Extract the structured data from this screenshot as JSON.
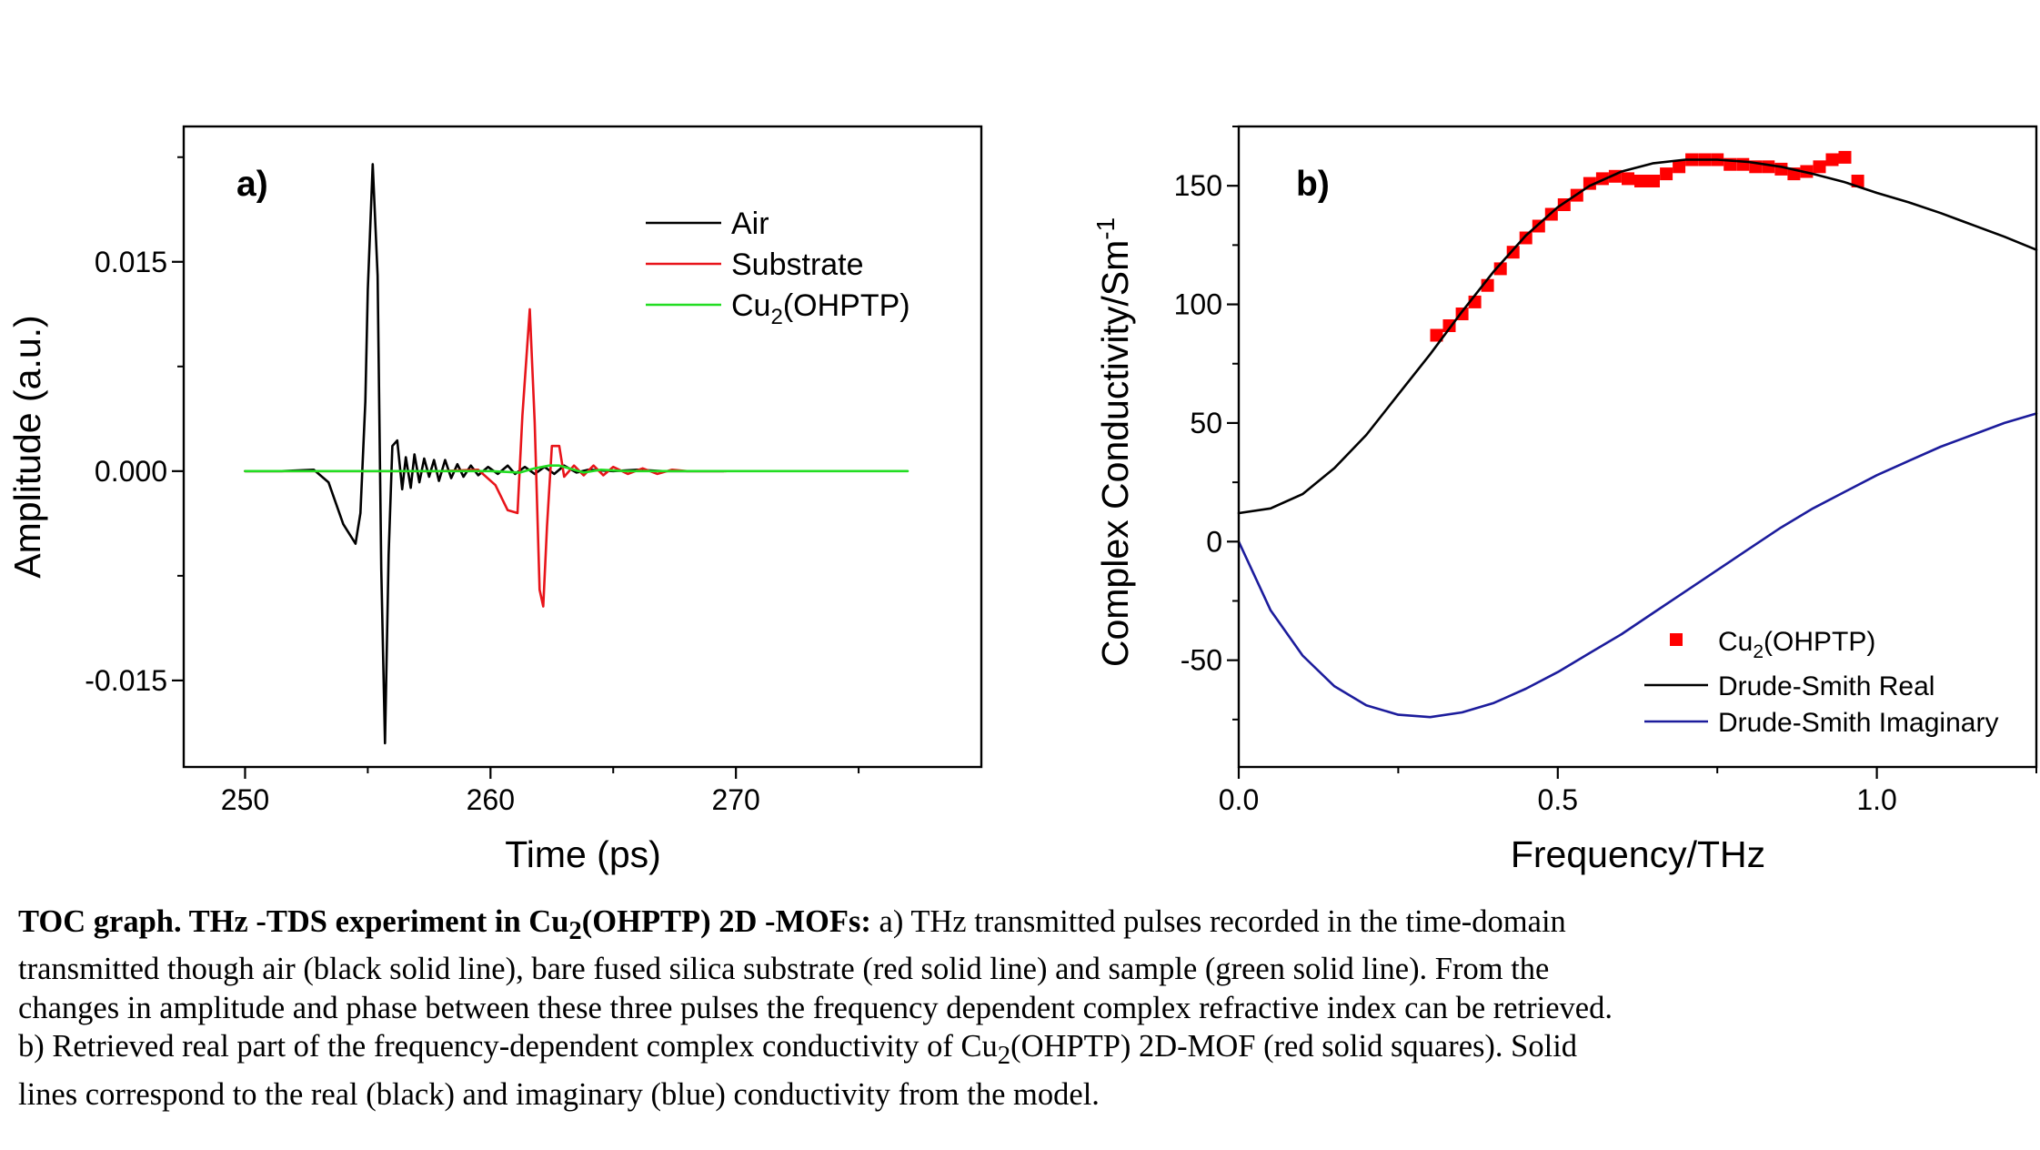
{
  "chart_data": [
    {
      "type": "line",
      "panel_label": "a)",
      "xlabel": "Time (ps)",
      "ylabel": "Amplitude (a.u.)",
      "xlim": [
        247.5,
        280
      ],
      "ylim": [
        -0.0212,
        0.0247
      ],
      "x_ticks": [
        250,
        260,
        270
      ],
      "x_tick_labels": [
        "250",
        "260",
        "270"
      ],
      "y_ticks": [
        -0.015,
        0.0,
        0.015
      ],
      "y_tick_labels": [
        "-0.015",
        "0.000",
        "0.015"
      ],
      "grid": false,
      "legend_position": "top-right",
      "series": [
        {
          "name": "Air",
          "color": "#000000",
          "x": [
            250.0,
            251.5,
            252.8,
            253.4,
            254.0,
            254.5,
            254.7,
            254.9,
            255.0,
            255.2,
            255.4,
            255.55,
            255.7,
            255.85,
            256.0,
            256.2,
            256.4,
            256.55,
            256.75,
            256.9,
            257.1,
            257.3,
            257.5,
            257.7,
            257.9,
            258.15,
            258.4,
            258.65,
            258.9,
            259.2,
            259.5,
            259.9,
            260.3,
            260.7,
            261.0,
            261.4,
            261.8,
            262.2,
            262.6,
            263.0,
            263.5,
            264.0,
            265.0,
            266.0,
            267.0,
            268.0,
            269.5
          ],
          "y": [
            0.0,
            0.0,
            0.0001,
            -0.0008,
            -0.0038,
            -0.0052,
            -0.003,
            0.005,
            0.013,
            0.022,
            0.014,
            -0.007,
            -0.0195,
            -0.006,
            0.0018,
            0.0022,
            -0.0013,
            0.001,
            -0.0012,
            0.0012,
            -0.0008,
            0.0009,
            -0.0004,
            0.0008,
            -0.0007,
            0.0008,
            -0.0005,
            0.0005,
            -0.0004,
            0.0004,
            -0.0003,
            0.0003,
            -0.0002,
            0.0004,
            -0.0002,
            0.0003,
            -0.0002,
            0.0003,
            -0.0002,
            0.0004,
            -0.0001,
            0.0001,
            0.0,
            0.0001,
            0.0,
            0.0,
            0.0
          ]
        },
        {
          "name": "Substrate",
          "color": "#e8141a",
          "x": [
            250.0,
            255.0,
            258.0,
            259.5,
            260.2,
            260.7,
            261.1,
            261.3,
            261.6,
            261.8,
            262.0,
            262.15,
            262.3,
            262.5,
            262.8,
            263.0,
            263.4,
            263.8,
            264.2,
            264.6,
            265.0,
            265.6,
            266.2,
            266.8,
            267.4,
            268.0,
            269.6
          ],
          "y": [
            0.0,
            0.0,
            0.0,
            0.0001,
            -0.001,
            -0.0028,
            -0.003,
            0.004,
            0.0116,
            0.0035,
            -0.0085,
            -0.0097,
            -0.004,
            0.0018,
            0.0018,
            -0.0004,
            0.0004,
            -0.0003,
            0.0004,
            -0.0003,
            0.0003,
            -0.0002,
            0.0002,
            -0.0002,
            0.0001,
            0.0,
            0.0
          ]
        },
        {
          "name": "Cu2(OHPTP)",
          "color": "#22dd22",
          "x": [
            250.0,
            260.0,
            261.2,
            261.8,
            262.4,
            262.8,
            263.2,
            263.8,
            264.5,
            265.5,
            277.0
          ],
          "y": [
            0.0,
            0.0,
            -0.0001,
            0.0002,
            0.0004,
            0.0004,
            0.0002,
            -0.0001,
            0.0001,
            0.0,
            0.0
          ]
        }
      ]
    },
    {
      "type": "scatter",
      "panel_label": "b)",
      "xlabel": "Frequency/THz",
      "ylabel": "Complex Conductivity/Sm",
      "ylabel_sup": "-1",
      "xlim": [
        0.0,
        1.25
      ],
      "ylim": [
        -95,
        175
      ],
      "x_ticks": [
        0.0,
        0.5,
        1.0
      ],
      "x_tick_labels": [
        "0.0",
        "0.5",
        "1.0"
      ],
      "y_ticks": [
        -50,
        0,
        50,
        100,
        150
      ],
      "y_tick_labels": [
        "-50",
        "0",
        "50",
        "100",
        "150"
      ],
      "grid": false,
      "legend_position": "bottom-right",
      "series": [
        {
          "name": "Cu2(OHPTP)",
          "marker": "square",
          "color": "#ff0000",
          "x": [
            0.31,
            0.33,
            0.35,
            0.37,
            0.39,
            0.41,
            0.43,
            0.45,
            0.47,
            0.49,
            0.51,
            0.53,
            0.55,
            0.57,
            0.59,
            0.61,
            0.63,
            0.65,
            0.67,
            0.69,
            0.71,
            0.73,
            0.75,
            0.77,
            0.79,
            0.81,
            0.83,
            0.85,
            0.87,
            0.89,
            0.91,
            0.93,
            0.95,
            0.97
          ],
          "y": [
            87,
            91,
            96,
            101,
            108,
            115,
            122,
            128,
            133,
            138,
            142,
            146,
            151,
            153,
            154,
            153,
            152,
            152,
            155,
            158,
            161,
            161,
            161,
            159,
            159,
            158,
            158,
            157,
            155,
            156,
            158,
            161,
            162,
            152
          ]
        },
        {
          "name": "Drude-Smith Real",
          "color": "#000000",
          "x": [
            0.0,
            0.05,
            0.1,
            0.15,
            0.2,
            0.25,
            0.3,
            0.35,
            0.4,
            0.45,
            0.5,
            0.55,
            0.6,
            0.65,
            0.7,
            0.75,
            0.8,
            0.85,
            0.9,
            0.95,
            1.0,
            1.05,
            1.1,
            1.15,
            1.2,
            1.25
          ],
          "y": [
            12,
            14,
            20,
            31,
            45,
            62,
            79,
            97,
            114,
            129,
            141,
            150,
            156,
            159.5,
            161,
            161,
            160,
            158,
            155,
            151.5,
            147,
            143,
            138.5,
            133.5,
            128.5,
            123
          ]
        },
        {
          "name": "Drude-Smith Imaginary",
          "color": "#1c1c9c",
          "x": [
            0.0,
            0.05,
            0.1,
            0.15,
            0.2,
            0.25,
            0.3,
            0.35,
            0.4,
            0.45,
            0.5,
            0.55,
            0.6,
            0.65,
            0.7,
            0.75,
            0.8,
            0.85,
            0.9,
            0.95,
            1.0,
            1.05,
            1.1,
            1.15,
            1.2,
            1.25
          ],
          "y": [
            0,
            -29,
            -48,
            -61,
            -69,
            -73,
            -74,
            -72,
            -68,
            -62,
            -55,
            -47,
            -39,
            -30,
            -21,
            -12,
            -3,
            6,
            14,
            21,
            28,
            34,
            40,
            45,
            50,
            54
          ]
        }
      ]
    }
  ],
  "caption": {
    "bold_prefix": "TOC graph. THz -TDS experiment in Cu",
    "bold_sub": "2",
    "bold_suffix": "(OHPTP) 2D -MOFs:",
    "line1_rest": " a) THz transmitted pulses recorded in the time-domain",
    "line2": "transmitted though air (black solid line), bare fused silica substrate (red solid line) and sample (green solid line). From the",
    "line3": "changes in amplitude and phase between these three pulses the frequency dependent complex refractive index can be retrieved.",
    "line4_before": "b) Retrieved real part of the frequency-dependent complex conductivity of Cu",
    "line4_sub": "2",
    "line4_after": "(OHPTP) 2D-MOF (red solid squares). Solid",
    "line5": "lines correspond to the real (black) and imaginary (blue) conductivity from the model."
  }
}
